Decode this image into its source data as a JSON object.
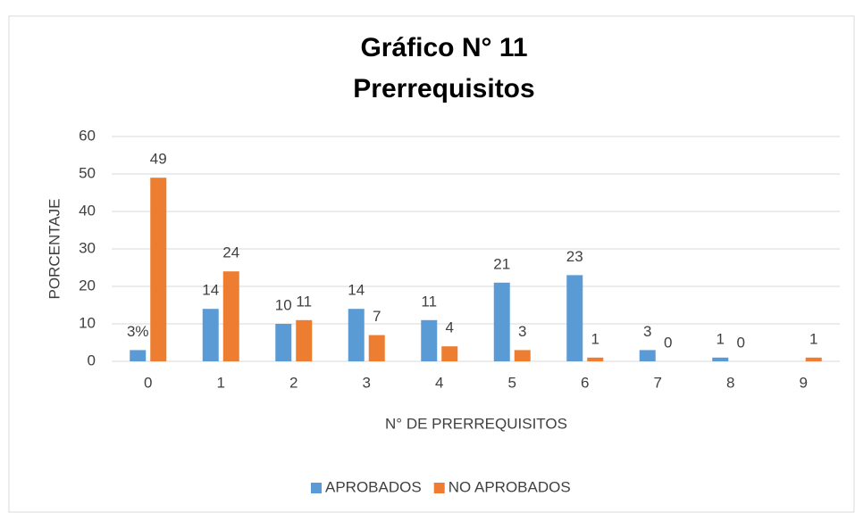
{
  "chart_data": {
    "type": "bar",
    "title": [
      "Gráfico N° 11",
      "Prerrequisitos"
    ],
    "x_label": "N° DE PRERREQUISITOS",
    "y_label": "PORCENTAJE",
    "categories": [
      "0",
      "1",
      "2",
      "3",
      "4",
      "5",
      "6",
      "7",
      "8",
      "9"
    ],
    "series": [
      {
        "name": "APROBADOS",
        "color": "#5b9bd5",
        "values": [
          3,
          14,
          10,
          14,
          11,
          21,
          23,
          3,
          1,
          null
        ],
        "value_labels": [
          "3%",
          "14",
          "10",
          "14",
          "11",
          "21",
          "23",
          "3",
          "1",
          null
        ]
      },
      {
        "name": "NO APROBADOS",
        "color": "#ed7d31",
        "values": [
          49,
          24,
          11,
          7,
          4,
          3,
          1,
          0,
          0,
          1
        ]
      }
    ],
    "ylim": [
      0,
      60
    ],
    "yticks": [
      0,
      10,
      20,
      30,
      40,
      50,
      60
    ],
    "grid": true,
    "legend": "bottom"
  }
}
